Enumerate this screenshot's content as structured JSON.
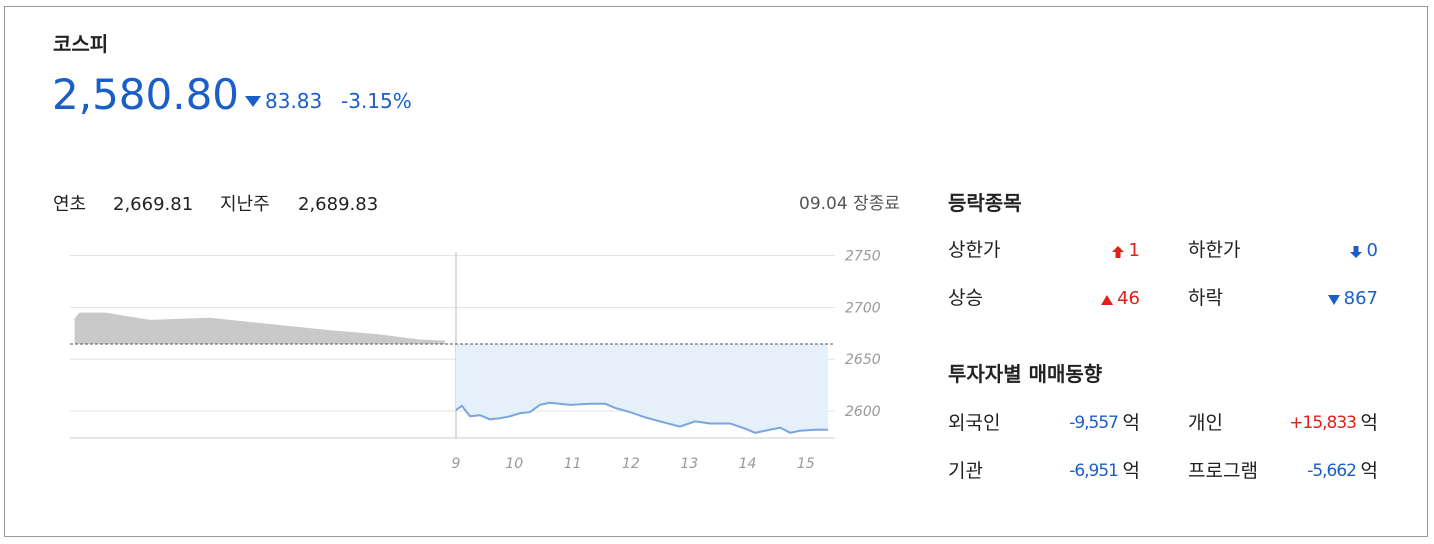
{
  "header": {
    "name": "코스피",
    "price": "2,580.80",
    "change": "83.83",
    "change_pct": "-3.15%"
  },
  "summary": {
    "ytd_label": "연초",
    "ytd_value": "2,669.81",
    "lastweek_label": "지난주",
    "lastweek_value": "2,689.83",
    "status": "09.04 장종료"
  },
  "chart_data": {
    "type": "area",
    "xlim": [
      2.38,
      15.5
    ],
    "xticks": [
      9,
      10,
      11,
      12,
      13,
      14,
      15
    ],
    "ylim": [
      2574,
      2765
    ],
    "yticks": [
      2750,
      2700,
      2650,
      2600
    ],
    "grid": true,
    "reference": 2664.63,
    "series": [
      {
        "color": "#c9c9c9",
        "fill": "#c9c9c9",
        "x": [
          2.46,
          2.55,
          2.98,
          3.75,
          4.78,
          5.81,
          6.84,
          7.7,
          8.38,
          8.81
        ],
        "values": [
          2688,
          2694,
          2694,
          2687,
          2689,
          2683,
          2677,
          2673,
          2668,
          2667
        ]
      },
      {
        "color": "#79a6dc",
        "fill": "#e5f0fb",
        "x": [
          9,
          9.1,
          9.24,
          9.41,
          9.58,
          9.75,
          9.93,
          10.1,
          10.27,
          10.44,
          10.61,
          10.96,
          11.3,
          11.56,
          11.73,
          11.98,
          12.24,
          12.5,
          12.84,
          13.1,
          13.36,
          13.7,
          13.96,
          14.13,
          14.3,
          14.56,
          14.73,
          14.9,
          15.16,
          15.38
        ],
        "values": [
          2601,
          2605,
          2595,
          2596,
          2592,
          2593,
          2595,
          2598,
          2599,
          2606,
          2608,
          2606,
          2607,
          2607,
          2603,
          2599,
          2594,
          2590,
          2585,
          2590,
          2588,
          2588,
          2583,
          2579,
          2581,
          2584,
          2579,
          2581,
          2582,
          2582
        ]
      }
    ]
  },
  "breadth": {
    "title": "등락종목",
    "items": [
      {
        "label": "상한가",
        "value": "1",
        "color": "#e0201d"
      },
      {
        "label": "하한가",
        "value": "0",
        "color": "#1a5fc8"
      },
      {
        "label": "상승",
        "value": "46",
        "color": "#e0201d"
      },
      {
        "label": "하락",
        "value": "867",
        "color": "#1a5fc8"
      }
    ]
  },
  "investors": {
    "title": "투자자별 매매동향",
    "unit": "억",
    "items": [
      {
        "label": "외국인",
        "value": "-9,557",
        "color": "#1a5fc8"
      },
      {
        "label": "개인",
        "value": "+15,833",
        "color": "#e0201d"
      },
      {
        "label": "기관",
        "value": "-6,951",
        "color": "#1a5fc8"
      },
      {
        "label": "프로그램",
        "value": "-5,662",
        "color": "#1a5fc8"
      }
    ]
  }
}
